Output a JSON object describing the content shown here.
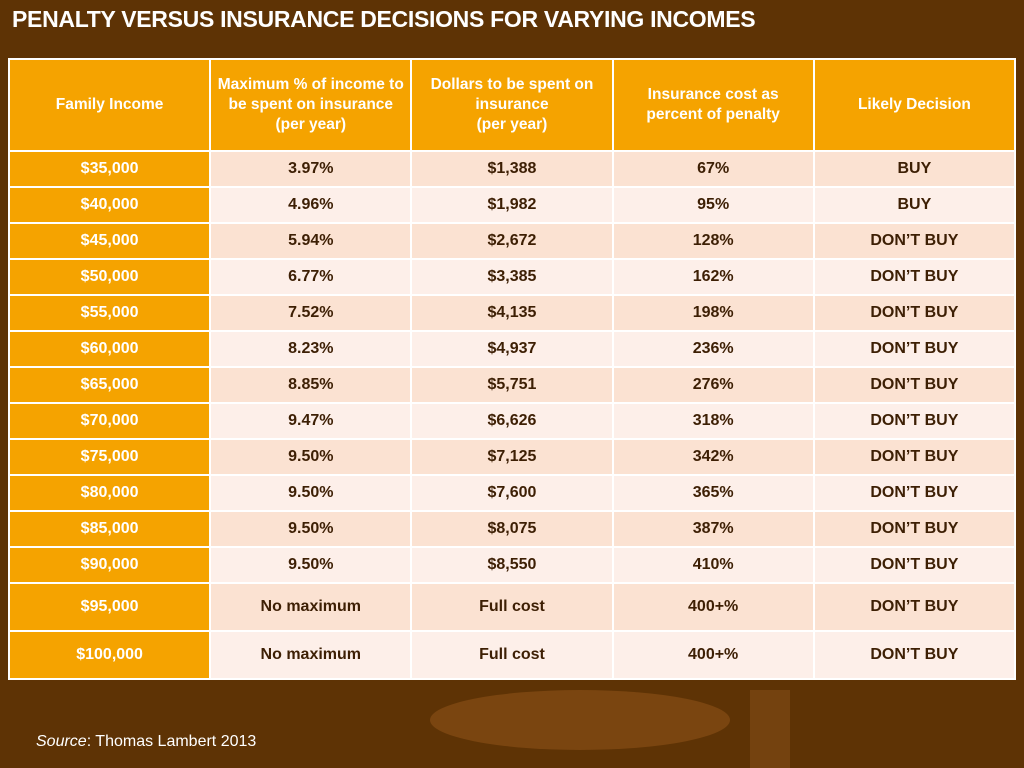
{
  "title": "PENALTY VERSUS INSURANCE DECISIONS FOR VARYING INCOMES",
  "table": {
    "headers": [
      [
        "Family Income"
      ],
      [
        "Maximum % of income to be spent on insurance",
        "(per year)"
      ],
      [
        "Dollars to be spent on insurance",
        "(per year)"
      ],
      [
        "Insurance cost as percent of penalty"
      ],
      [
        "Likely Decision"
      ]
    ],
    "rows": [
      [
        "$35,000",
        "3.97%",
        "$1,388",
        "67%",
        "BUY"
      ],
      [
        "$40,000",
        "4.96%",
        "$1,982",
        "95%",
        "BUY"
      ],
      [
        "$45,000",
        "5.94%",
        "$2,672",
        "128%",
        "DON’T BUY"
      ],
      [
        "$50,000",
        "6.77%",
        "$3,385",
        "162%",
        "DON’T BUY"
      ],
      [
        "$55,000",
        "7.52%",
        "$4,135",
        "198%",
        "DON’T BUY"
      ],
      [
        "$60,000",
        "8.23%",
        "$4,937",
        "236%",
        "DON’T BUY"
      ],
      [
        "$65,000",
        "8.85%",
        "$5,751",
        "276%",
        "DON’T BUY"
      ],
      [
        "$70,000",
        "9.47%",
        "$6,626",
        "318%",
        "DON’T BUY"
      ],
      [
        "$75,000",
        "9.50%",
        "$7,125",
        "342%",
        "DON’T BUY"
      ],
      [
        "$80,000",
        "9.50%",
        "$7,600",
        "365%",
        "DON’T BUY"
      ],
      [
        "$85,000",
        "9.50%",
        "$8,075",
        "387%",
        "DON’T BUY"
      ],
      [
        "$90,000",
        "9.50%",
        "$8,550",
        "410%",
        "DON’T BUY"
      ],
      [
        "$95,000",
        "No maximum",
        "Full cost",
        "400+%",
        "DON’T BUY"
      ],
      [
        "$100,000",
        "No maximum",
        "Full cost",
        "400+%",
        "DON’T BUY"
      ]
    ]
  },
  "source": {
    "label": "Source",
    "text": ": Thomas Lambert 2013"
  }
}
